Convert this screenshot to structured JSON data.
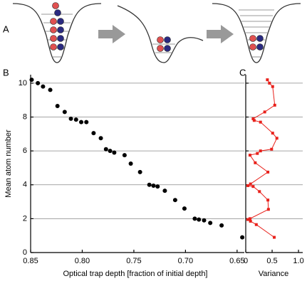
{
  "panel_labels": [
    "A",
    "B",
    "C"
  ],
  "chart_data": [
    {
      "type": "scatter",
      "x_label": "Optical trap depth [fraction of initial depth]",
      "y_label": "Mean atom number",
      "color": "#000000",
      "x": [
        0.849,
        0.843,
        0.838,
        0.831,
        0.824,
        0.817,
        0.811,
        0.806,
        0.801,
        0.796,
        0.789,
        0.782,
        0.777,
        0.773,
        0.769,
        0.759,
        0.753,
        0.744,
        0.735,
        0.731,
        0.727,
        0.72,
        0.71,
        0.701,
        0.691,
        0.687,
        0.682,
        0.676,
        0.665,
        0.645
      ],
      "values": [
        10.2,
        10.0,
        9.8,
        9.6,
        8.65,
        8.3,
        7.9,
        7.85,
        7.7,
        7.7,
        7.05,
        6.75,
        6.1,
        6.0,
        5.9,
        5.75,
        5.25,
        4.75,
        4.0,
        3.95,
        3.9,
        3.65,
        3.1,
        2.6,
        2.0,
        1.95,
        1.9,
        1.75,
        1.6,
        0.9
      ],
      "xlim": [
        0.85,
        0.643
      ],
      "xticks": [
        0.85,
        {
          "value": 0.8,
          "label": "0.80"
        },
        0.75,
        {
          "value": 0.7,
          "label": "0.70"
        },
        0.65
      ],
      "ylim": [
        0,
        10.5
      ],
      "yticks": [
        0,
        2,
        4,
        6,
        8,
        10
      ],
      "grid": true
    },
    {
      "type": "line",
      "x_label": "Variance",
      "color": "#e8211b",
      "x": [
        0.41,
        0.45,
        0.51,
        0.55,
        0.36,
        0.14,
        0.16,
        0.28,
        0.51,
        0.59,
        0.49,
        0.28,
        0.22,
        0.08,
        0.18,
        0.42,
        0.09,
        0.04,
        0.14,
        0.26,
        0.42,
        0.43,
        0.08,
        0.04,
        0.09,
        0.2,
        0.54
      ],
      "values": [
        10.2,
        10.0,
        9.8,
        8.7,
        8.3,
        7.9,
        7.8,
        7.7,
        7.05,
        6.75,
        6.1,
        6.0,
        5.85,
        5.75,
        5.3,
        4.75,
        4.05,
        3.95,
        3.9,
        3.6,
        3.1,
        2.55,
        2.0,
        1.95,
        1.85,
        1.65,
        0.9
      ],
      "xlim": [
        0,
        1.08
      ],
      "xticks": [
        0,
        0.5,
        {
          "value": 1,
          "label": "1.0"
        }
      ],
      "ylim": [
        0,
        10.5
      ],
      "yticks": [
        0,
        2,
        4,
        6,
        8,
        10
      ],
      "ytick_labels": false,
      "grid": true
    }
  ]
}
